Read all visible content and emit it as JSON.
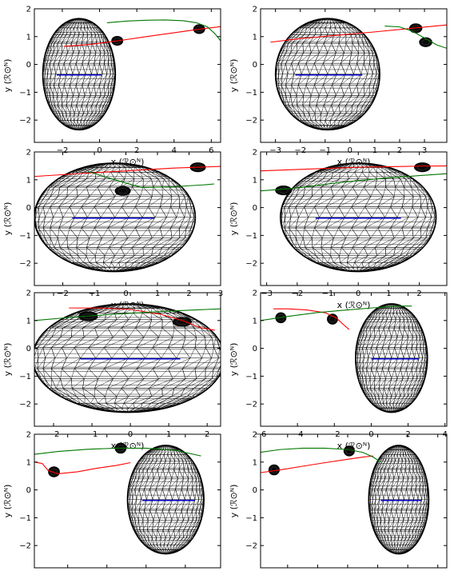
{
  "chart_data": [
    {
      "type": "line",
      "xlabel": "x (ℛ⊙ᴺ)",
      "ylabel": "y (ℛ⊙ᴺ)",
      "xlim": [
        -3.5,
        6.5
      ],
      "ylim": [
        -2.8,
        2.0
      ],
      "xticks": [
        -2,
        0,
        2,
        4,
        6
      ],
      "yticks": [
        -2,
        -1,
        0,
        1,
        2
      ],
      "ellipsoid": {
        "cx": -1.1,
        "cy": -0.35,
        "rx": 1.95,
        "ry": 2.0
      },
      "inner_line": {
        "color": "#0000cc",
        "x": [
          -2.3,
          0.1
        ],
        "y": [
          -0.38,
          -0.38
        ]
      },
      "bodies": [
        {
          "x": 0.95,
          "y": 0.85,
          "rx": 0.3,
          "ry": 0.16
        },
        {
          "x": 5.35,
          "y": 1.27,
          "rx": 0.3,
          "ry": 0.16
        }
      ],
      "series": [
        {
          "color": "#ff0000",
          "x": [
            -1.9,
            -0.5,
            1.0,
            2.5,
            4.0,
            5.5,
            6.5
          ],
          "y": [
            0.65,
            0.72,
            0.85,
            1.0,
            1.14,
            1.28,
            1.36
          ]
        },
        {
          "color": "#007700",
          "x": [
            0.4,
            1.5,
            2.5,
            3.5,
            4.5,
            5.2,
            5.8,
            6.2,
            6.5
          ],
          "y": [
            1.5,
            1.56,
            1.59,
            1.6,
            1.57,
            1.5,
            1.35,
            1.1,
            0.85
          ]
        }
      ]
    },
    {
      "type": "line",
      "xlabel": "x (ℛ⊙ᴺ)",
      "ylabel": "y (ℛ⊙ᴺ)",
      "xlim": [
        -3.6,
        3.9
      ],
      "ylim": [
        -2.8,
        2.0
      ],
      "xticks": [
        -3,
        -2,
        -1,
        0,
        1,
        2,
        3
      ],
      "yticks": [
        -2,
        -1,
        0,
        1,
        2
      ],
      "ellipsoid": {
        "cx": -0.9,
        "cy": -0.35,
        "rx": 2.1,
        "ry": 2.0
      },
      "inner_line": {
        "color": "#0000cc",
        "x": [
          -2.2,
          0.5
        ],
        "y": [
          -0.38,
          -0.38
        ]
      },
      "bodies": [
        {
          "x": 2.65,
          "y": 1.3,
          "rx": 0.25,
          "ry": 0.16
        },
        {
          "x": 3.05,
          "y": 0.8,
          "rx": 0.25,
          "ry": 0.16
        }
      ],
      "series": [
        {
          "color": "#ff0000",
          "x": [
            -3.2,
            -2.0,
            -0.5,
            1.0,
            2.5,
            3.9
          ],
          "y": [
            0.8,
            0.93,
            1.05,
            1.17,
            1.3,
            1.42
          ]
        },
        {
          "color": "#007700",
          "x": [
            1.4,
            2.0,
            2.5,
            3.0,
            3.5,
            3.9
          ],
          "y": [
            1.38,
            1.35,
            1.2,
            0.95,
            0.7,
            0.58
          ]
        }
      ]
    },
    {
      "type": "line",
      "xlabel": "x (ℛ⊙ᴺ)",
      "ylabel": "y (ℛ⊙ᴺ)",
      "xlim": [
        -2.9,
        3.0
      ],
      "ylim": [
        -2.8,
        2.0
      ],
      "xticks": [
        -2,
        -1,
        0,
        1,
        2,
        3
      ],
      "yticks": [
        -2,
        -1,
        0,
        1,
        2
      ],
      "ellipsoid": {
        "cx": -0.35,
        "cy": -0.35,
        "rx": 2.55,
        "ry": 1.95
      },
      "inner_line": {
        "color": "#0000cc",
        "x": [
          -1.7,
          0.9
        ],
        "y": [
          -0.38,
          -0.38
        ]
      },
      "bodies": [
        {
          "x": 2.28,
          "y": 1.45,
          "rx": 0.24,
          "ry": 0.16
        },
        {
          "x": -0.1,
          "y": 0.6,
          "rx": 0.24,
          "ry": 0.16
        }
      ],
      "series": [
        {
          "color": "#ff0000",
          "x": [
            -2.9,
            -1.5,
            0.0,
            1.5,
            3.0
          ],
          "y": [
            1.12,
            1.22,
            1.32,
            1.42,
            1.48
          ]
        },
        {
          "color": "#007700",
          "x": [
            -1.2,
            -0.5,
            0.5,
            1.5,
            2.5,
            2.8
          ],
          "y": [
            1.3,
            1.05,
            0.72,
            0.75,
            0.82,
            0.85
          ]
        }
      ]
    },
    {
      "type": "line",
      "xlabel": "x (ℛ⊙ᴺ)",
      "ylabel": "y (ℛ⊙ᴺ)",
      "xlim": [
        -3.2,
        2.9
      ],
      "ylim": [
        -2.8,
        2.0
      ],
      "xticks": [
        -3,
        -2,
        -1,
        0,
        1,
        2
      ],
      "yticks": [
        -2,
        -1,
        0,
        1,
        2
      ],
      "ellipsoid": {
        "cx": 0.0,
        "cy": -0.35,
        "rx": 2.55,
        "ry": 1.95
      },
      "inner_line": {
        "color": "#0000cc",
        "x": [
          -1.4,
          1.4
        ],
        "y": [
          -0.38,
          -0.38
        ]
      },
      "bodies": [
        {
          "x": -2.45,
          "y": 0.62,
          "rx": 0.26,
          "ry": 0.16
        },
        {
          "x": 2.1,
          "y": 1.45,
          "rx": 0.26,
          "ry": 0.16
        }
      ],
      "series": [
        {
          "color": "#ff0000",
          "x": [
            -3.2,
            -2.0,
            -1.0,
            0.0,
            1.0,
            2.0,
            2.9
          ],
          "y": [
            1.32,
            1.37,
            1.41,
            1.45,
            1.47,
            1.49,
            1.5
          ]
        },
        {
          "color": "#007700",
          "x": [
            -3.2,
            -2.0,
            -1.0,
            0.0,
            1.0,
            2.0,
            2.9
          ],
          "y": [
            0.6,
            0.7,
            0.85,
            0.97,
            1.07,
            1.15,
            1.22
          ]
        }
      ]
    },
    {
      "type": "line",
      "xlabel": "x (ℛ⊙ᴺ)",
      "ylabel": "y (ℛ⊙ᴺ)",
      "xlim": [
        -2.5,
        2.35
      ],
      "ylim": [
        -2.8,
        2.0
      ],
      "xticks": [
        -2,
        -1,
        0,
        1,
        2
      ],
      "yticks": [
        -2,
        -1,
        0,
        1,
        2
      ],
      "ellipsoid": {
        "cx": -0.05,
        "cy": -0.35,
        "rx": 2.5,
        "ry": 1.95
      },
      "inner_line": {
        "color": "#0000cc",
        "x": [
          -1.3,
          1.3
        ],
        "y": [
          -0.38,
          -0.38
        ]
      },
      "bodies": [
        {
          "x": -1.1,
          "y": 1.15,
          "rx": 0.24,
          "ry": 0.16
        },
        {
          "x": 1.35,
          "y": 0.95,
          "rx": 0.24,
          "ry": 0.16
        }
      ],
      "series": [
        {
          "color": "#ff0000",
          "x": [
            -1.6,
            -0.8,
            0.0,
            0.8,
            1.4,
            1.8,
            2.2
          ],
          "y": [
            1.45,
            1.45,
            1.4,
            1.22,
            0.98,
            0.75,
            0.65
          ]
        },
        {
          "color": "#007700",
          "x": [
            -2.5,
            -1.5,
            -0.5,
            0.5,
            1.5,
            2.35
          ],
          "y": [
            1.0,
            1.12,
            1.22,
            1.3,
            1.37,
            1.42
          ]
        }
      ]
    },
    {
      "type": "line",
      "xlabel": "x (ℛ⊙ᴺ)",
      "ylabel": "y (ℛ⊙ᴺ)",
      "xlim": [
        -6.0,
        4.1
      ],
      "ylim": [
        -2.8,
        2.0
      ],
      "xticks": [
        -6,
        -4,
        -2,
        0,
        2,
        4
      ],
      "yticks": [
        -2,
        -1,
        0,
        1,
        2
      ],
      "ellipsoid": {
        "cx": 1.1,
        "cy": -0.35,
        "rx": 1.95,
        "ry": 1.95
      },
      "inner_line": {
        "color": "#0000cc",
        "x": [
          0.0,
          2.6
        ],
        "y": [
          -0.38,
          -0.38
        ]
      },
      "bodies": [
        {
          "x": -4.9,
          "y": 1.1,
          "rx": 0.28,
          "ry": 0.18
        },
        {
          "x": -2.1,
          "y": 1.05,
          "rx": 0.28,
          "ry": 0.18
        }
      ],
      "series": [
        {
          "color": "#ff0000",
          "x": [
            -5.3,
            -4.5,
            -3.5,
            -2.5,
            -1.9,
            -1.5,
            -1.2
          ],
          "y": [
            1.42,
            1.42,
            1.38,
            1.28,
            1.1,
            0.85,
            0.68
          ]
        },
        {
          "color": "#007700",
          "x": [
            -6.0,
            -4.5,
            -3.0,
            -1.5,
            0.0,
            1.5,
            2.2
          ],
          "y": [
            1.0,
            1.15,
            1.28,
            1.37,
            1.45,
            1.52,
            1.52
          ]
        }
      ]
    },
    {
      "type": "line",
      "xlabel": "x (ℛ⊙ᴺ)",
      "ylabel": "y (ℛ⊙ᴺ)",
      "xlim": [
        -5.7,
        3.8
      ],
      "ylim": [
        -2.8,
        2.0
      ],
      "xticks": [
        -4,
        -2,
        0,
        2
      ],
      "yticks": [
        -2,
        -1,
        0,
        1,
        2
      ],
      "ellipsoid": {
        "cx": 1.0,
        "cy": -0.35,
        "rx": 1.95,
        "ry": 1.95
      },
      "inner_line": {
        "color": "#0000cc",
        "x": [
          -0.2,
          2.5
        ],
        "y": [
          -0.38,
          -0.38
        ]
      },
      "bodies": [
        {
          "x": -4.7,
          "y": 0.65,
          "rx": 0.28,
          "ry": 0.18
        },
        {
          "x": -1.3,
          "y": 1.5,
          "rx": 0.28,
          "ry": 0.18
        }
      ],
      "series": [
        {
          "color": "#ff0000",
          "x": [
            -5.7,
            -5.3,
            -5.0,
            -4.5,
            -3.5,
            -2.5,
            -1.5,
            -0.8
          ],
          "y": [
            1.0,
            0.95,
            0.7,
            0.58,
            0.65,
            0.78,
            0.88,
            0.98
          ]
        },
        {
          "color": "#007700",
          "x": [
            -5.7,
            -4.5,
            -3.0,
            -1.5,
            0.0,
            1.5,
            2.8
          ],
          "y": [
            1.28,
            1.38,
            1.46,
            1.5,
            1.5,
            1.42,
            1.22
          ]
        }
      ]
    },
    {
      "type": "line",
      "xlabel": "x (ℛ⊙ᴺ)",
      "ylabel": "y (ℛ⊙ᴺ)",
      "xlim": [
        -7.8,
        4.6
      ],
      "ylim": [
        -2.8,
        2.0
      ],
      "xticks": [
        -6,
        -4,
        -2,
        0,
        2,
        4
      ],
      "yticks": [
        -2,
        -1,
        0,
        1,
        2
      ],
      "ellipsoid": {
        "cx": 1.4,
        "cy": -0.35,
        "rx": 2.0,
        "ry": 1.95
      },
      "inner_line": {
        "color": "#0000cc",
        "x": [
          0.2,
          2.9
        ],
        "y": [
          -0.38,
          -0.38
        ]
      },
      "bodies": [
        {
          "x": -6.9,
          "y": 0.72,
          "rx": 0.35,
          "ry": 0.18
        },
        {
          "x": -1.9,
          "y": 1.4,
          "rx": 0.35,
          "ry": 0.18
        }
      ],
      "series": [
        {
          "color": "#ff0000",
          "x": [
            -7.8,
            -6.5,
            -5.0,
            -3.5,
            -2.0,
            -1.0,
            -0.3
          ],
          "y": [
            0.62,
            0.72,
            0.85,
            0.98,
            1.1,
            1.18,
            1.22
          ]
        },
        {
          "color": "#007700",
          "x": [
            -7.8,
            -6.5,
            -5.0,
            -3.5,
            -2.0,
            -1.0,
            -0.3,
            0.2
          ],
          "y": [
            1.35,
            1.45,
            1.5,
            1.5,
            1.45,
            1.35,
            1.18,
            1.0
          ]
        }
      ]
    }
  ]
}
